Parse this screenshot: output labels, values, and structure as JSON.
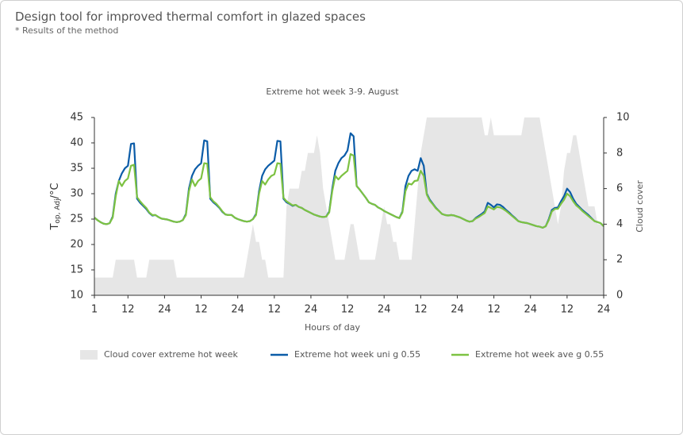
{
  "header": {
    "title": "Design tool for improved thermal comfort in glazed spaces",
    "subtitle": "* Results of the method"
  },
  "chart_data": {
    "type": "line",
    "title": "Extreme hot week 3-9. August",
    "xlabel": "Hours of day",
    "ylabel": {
      "base": "T",
      "sub": "op, Adj",
      "unit": "/°C"
    },
    "y2label": "Cloud cover",
    "x": [
      1,
      2,
      3,
      4,
      5,
      6,
      7,
      8,
      9,
      10,
      11,
      12,
      13,
      14,
      15,
      16,
      17,
      18,
      19,
      20,
      21,
      22,
      23,
      24,
      25,
      26,
      27,
      28,
      29,
      30,
      31,
      32,
      33,
      34,
      35,
      36,
      37,
      38,
      39,
      40,
      41,
      42,
      43,
      44,
      45,
      46,
      47,
      48,
      49,
      50,
      51,
      52,
      53,
      54,
      55,
      56,
      57,
      58,
      59,
      60,
      61,
      62,
      63,
      64,
      65,
      66,
      67,
      68,
      69,
      70,
      71,
      72,
      73,
      74,
      75,
      76,
      77,
      78,
      79,
      80,
      81,
      82,
      83,
      84,
      85,
      86,
      87,
      88,
      89,
      90,
      91,
      92,
      93,
      94,
      95,
      96,
      97,
      98,
      99,
      100,
      101,
      102,
      103,
      104,
      105,
      106,
      107,
      108,
      109,
      110,
      111,
      112,
      113,
      114,
      115,
      116,
      117,
      118,
      119,
      120,
      121,
      122,
      123,
      124,
      125,
      126,
      127,
      128,
      129,
      130,
      131,
      132,
      133,
      134,
      135,
      136,
      137,
      138,
      139,
      140,
      141,
      142,
      143,
      144,
      145,
      146,
      147,
      148,
      149,
      150,
      151,
      152,
      153,
      154,
      155,
      156,
      157,
      158,
      159,
      160,
      161,
      162,
      163,
      164,
      165,
      166,
      167,
      168
    ],
    "xlim": [
      1,
      168
    ],
    "xticks": [
      1,
      12,
      24,
      {
        "value": 36,
        "label": "12"
      },
      {
        "value": 48,
        "label": "24"
      },
      {
        "value": 60,
        "label": "12"
      },
      {
        "value": 72,
        "label": "24"
      },
      {
        "value": 84,
        "label": "12"
      },
      {
        "value": 96,
        "label": "24"
      },
      {
        "value": 108,
        "label": "12"
      },
      {
        "value": 120,
        "label": "24"
      },
      {
        "value": 132,
        "label": "12"
      },
      {
        "value": 144,
        "label": "24"
      },
      {
        "value": 156,
        "label": "12"
      },
      {
        "value": 168,
        "label": "24"
      }
    ],
    "ylim": [
      10,
      45
    ],
    "yticks": [
      10,
      15,
      20,
      25,
      30,
      35,
      40,
      45
    ],
    "y2lim": [
      0,
      10
    ],
    "y2ticks": [
      0,
      2,
      4,
      6,
      8,
      10
    ],
    "grid": false,
    "series": [
      {
        "name": "Cloud cover extreme hot week",
        "color": "#e6e6e6",
        "type": "area",
        "axis": "y2",
        "values": [
          1,
          1,
          1,
          1,
          1,
          1,
          1,
          2,
          2,
          2,
          2,
          2,
          2,
          2,
          1,
          1,
          1,
          1,
          2,
          2,
          2,
          2,
          2,
          2,
          2,
          2,
          2,
          1,
          1,
          1,
          1,
          1,
          1,
          1,
          1,
          1,
          1,
          1,
          1,
          1,
          1,
          1,
          1,
          1,
          1,
          1,
          1,
          1,
          1,
          1,
          2,
          3,
          4,
          3,
          3,
          2,
          2,
          1,
          1,
          1,
          1,
          1,
          1,
          5,
          6,
          6,
          6,
          6,
          7,
          7,
          8,
          8,
          8,
          9,
          8,
          6,
          5,
          4,
          3,
          2,
          2,
          2,
          2,
          3,
          4,
          4,
          3,
          2,
          2,
          2,
          2,
          2,
          2,
          3,
          4,
          5,
          4,
          4,
          3,
          3,
          2,
          2,
          2,
          2,
          2,
          4,
          6,
          8,
          9,
          10,
          10,
          10,
          10,
          10,
          10,
          10,
          10,
          10,
          10,
          10,
          10,
          10,
          10,
          10,
          10,
          10,
          10,
          10,
          9,
          9,
          10,
          9,
          9,
          9,
          9,
          9,
          9,
          9,
          9,
          9,
          9,
          10,
          10,
          10,
          10,
          10,
          10,
          9,
          8,
          7,
          6,
          5,
          4,
          5,
          7,
          8,
          8,
          9,
          9,
          8,
          7,
          6,
          5,
          5,
          5,
          4,
          4,
          4
        ]
      },
      {
        "name": "Extreme hot week uni g 0.55",
        "color": "#0b5ca8",
        "values": [
          25.3,
          24.8,
          24.4,
          24.1,
          24.0,
          24.2,
          25.5,
          30.0,
          32.5,
          34.0,
          35.0,
          35.5,
          39.8,
          39.9,
          29.0,
          28.2,
          27.6,
          27.0,
          26.2,
          25.7,
          25.8,
          25.4,
          25.1,
          25.0,
          24.9,
          24.7,
          24.5,
          24.4,
          24.5,
          24.8,
          26.0,
          31.0,
          33.5,
          34.8,
          35.5,
          36.0,
          40.5,
          40.3,
          29.0,
          28.3,
          27.8,
          27.2,
          26.4,
          25.9,
          25.8,
          25.8,
          25.3,
          25.0,
          24.8,
          24.6,
          24.5,
          24.6,
          25.0,
          26.0,
          30.5,
          33.5,
          34.8,
          35.5,
          36.0,
          36.5,
          40.4,
          40.3,
          29.0,
          28.3,
          28.0,
          27.6,
          27.8,
          27.4,
          27.2,
          26.8,
          26.5,
          26.2,
          25.9,
          25.7,
          25.5,
          25.4,
          25.5,
          26.5,
          31.0,
          34.5,
          36.0,
          37.0,
          37.5,
          38.5,
          41.9,
          41.3,
          31.5,
          30.8,
          30.0,
          29.2,
          28.3,
          28.0,
          27.8,
          27.3,
          27.0,
          26.6,
          26.3,
          26.0,
          25.7,
          25.4,
          25.2,
          26.5,
          31.5,
          33.5,
          34.5,
          34.8,
          34.5,
          37.0,
          35.5,
          30.0,
          28.8,
          28.0,
          27.2,
          26.6,
          26.0,
          25.8,
          25.7,
          25.8,
          25.7,
          25.5,
          25.3,
          25.0,
          24.7,
          24.5,
          24.6,
          25.2,
          25.6,
          26.0,
          26.5,
          28.2,
          27.8,
          27.3,
          27.9,
          27.8,
          27.4,
          26.8,
          26.3,
          25.7,
          25.2,
          24.6,
          24.4,
          24.3,
          24.2,
          24.0,
          23.8,
          23.6,
          23.5,
          23.3,
          23.6,
          25.0,
          26.8,
          27.2,
          27.3,
          28.5,
          29.5,
          31.0,
          30.3,
          29.0,
          28.0,
          27.4,
          26.8,
          26.3,
          25.8,
          25.2,
          24.6,
          24.4,
          24.2,
          23.6
        ]
      },
      {
        "name": "Extreme hot week ave g 0.55",
        "color": "#7dc242",
        "values": [
          25.3,
          24.8,
          24.4,
          24.1,
          24.0,
          24.2,
          25.3,
          29.5,
          32.5,
          31.5,
          32.5,
          33.0,
          35.5,
          35.7,
          29.3,
          28.5,
          27.8,
          27.2,
          26.3,
          25.8,
          25.8,
          25.4,
          25.1,
          25.0,
          24.9,
          24.7,
          24.5,
          24.4,
          24.5,
          24.8,
          25.8,
          30.5,
          32.8,
          31.5,
          32.5,
          33.0,
          36.0,
          35.9,
          29.3,
          28.5,
          28.0,
          27.3,
          26.5,
          25.9,
          25.8,
          25.8,
          25.3,
          25.0,
          24.8,
          24.6,
          24.5,
          24.6,
          25.0,
          25.8,
          30.0,
          32.5,
          31.8,
          32.8,
          33.5,
          33.8,
          36.0,
          35.9,
          29.2,
          28.5,
          28.1,
          27.7,
          27.8,
          27.4,
          27.2,
          26.8,
          26.5,
          26.2,
          25.9,
          25.7,
          25.5,
          25.4,
          25.5,
          26.3,
          30.5,
          33.5,
          32.8,
          33.5,
          34.0,
          34.5,
          37.8,
          37.5,
          31.5,
          30.8,
          30.0,
          29.2,
          28.3,
          28.0,
          27.8,
          27.3,
          27.0,
          26.6,
          26.3,
          26.0,
          25.7,
          25.4,
          25.2,
          26.3,
          30.5,
          32.0,
          31.8,
          32.5,
          32.6,
          34.5,
          33.5,
          29.8,
          28.6,
          27.9,
          27.1,
          26.6,
          26.0,
          25.8,
          25.7,
          25.8,
          25.7,
          25.5,
          25.3,
          25.0,
          24.7,
          24.5,
          24.6,
          25.1,
          25.4,
          25.8,
          26.2,
          27.5,
          27.2,
          26.9,
          27.4,
          27.3,
          27.0,
          26.6,
          26.1,
          25.6,
          25.1,
          24.6,
          24.4,
          24.3,
          24.2,
          24.0,
          23.8,
          23.6,
          23.5,
          23.3,
          23.6,
          24.8,
          26.5,
          27.0,
          27.0,
          28.0,
          28.8,
          30.0,
          29.5,
          28.5,
          27.7,
          27.2,
          26.6,
          26.1,
          25.6,
          25.1,
          24.6,
          24.4,
          24.2,
          23.6
        ]
      }
    ]
  }
}
